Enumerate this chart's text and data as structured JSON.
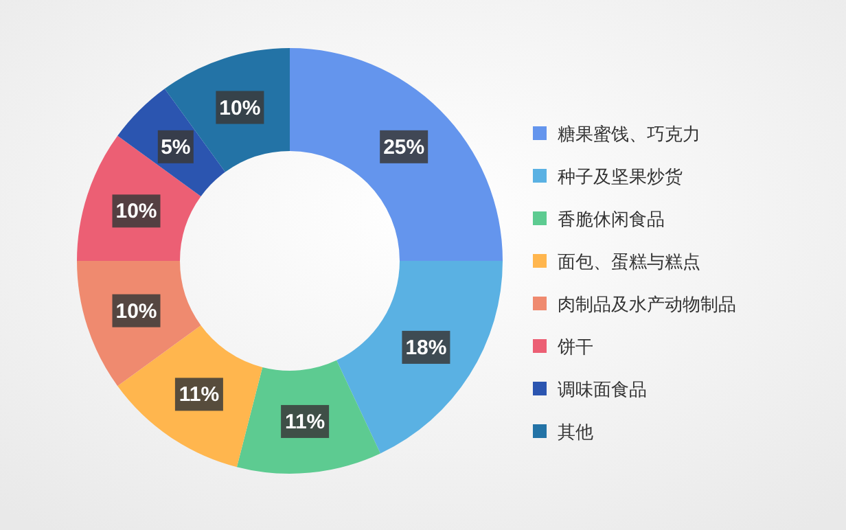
{
  "chart_data": {
    "type": "donut",
    "categories": [
      "糖果蜜饯、巧克力",
      "种子及坚果炒货",
      "香脆休闲食品",
      "面包、蛋糕与糕点",
      "肉制品及水产动物制品",
      "饼干",
      "调味面食品",
      "其他"
    ],
    "values": [
      25,
      18,
      11,
      11,
      10,
      10,
      5,
      10
    ],
    "colors": [
      "#6495ed",
      "#5ab1e3",
      "#5dcb91",
      "#ffb64e",
      "#ef8a6f",
      "#ec5f74",
      "#2b55b0",
      "#2373a6"
    ],
    "value_labels": [
      "25%",
      "18%",
      "11%",
      "11%",
      "10%",
      "10%",
      "5%",
      "10%"
    ],
    "legend": "right"
  }
}
